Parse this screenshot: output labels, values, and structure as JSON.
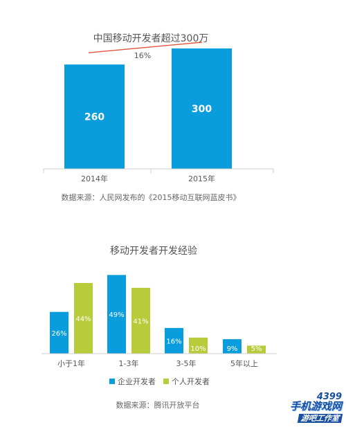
{
  "chart_data": [
    {
      "type": "bar",
      "title": "中国移动开发者超过300万",
      "categories": [
        "2014年",
        "2015年"
      ],
      "values": [
        260,
        300
      ],
      "value_labels": [
        "260",
        "300"
      ],
      "annotation": "16%",
      "source": "数据来源：人民网发布的《2015移动互联网蓝皮书》",
      "ylim": [
        0,
        330
      ],
      "colors": {
        "bar": "#0a9ddd",
        "trend": "#e3553d"
      }
    },
    {
      "type": "bar",
      "title": "移动开发者开发经验",
      "categories": [
        "小于1年",
        "1-3年",
        "3-5年",
        "5年以上"
      ],
      "series": [
        {
          "name": "企业开发者",
          "values": [
            26,
            49,
            16,
            9
          ],
          "labels": [
            "26%",
            "49%",
            "16%",
            "9%"
          ],
          "color": "#0a9ddd"
        },
        {
          "name": "个人开发者",
          "values": [
            44,
            41,
            10,
            5
          ],
          "labels": [
            "44%",
            "41%",
            "10%",
            "5%"
          ],
          "color": "#b8cc3b"
        }
      ],
      "ylim": [
        0,
        52
      ],
      "source": "数据来源：腾讯开放平台"
    }
  ],
  "watermark": {
    "line1": "4399",
    "line2": "手机游戏网",
    "line3": "游吧工作室"
  }
}
